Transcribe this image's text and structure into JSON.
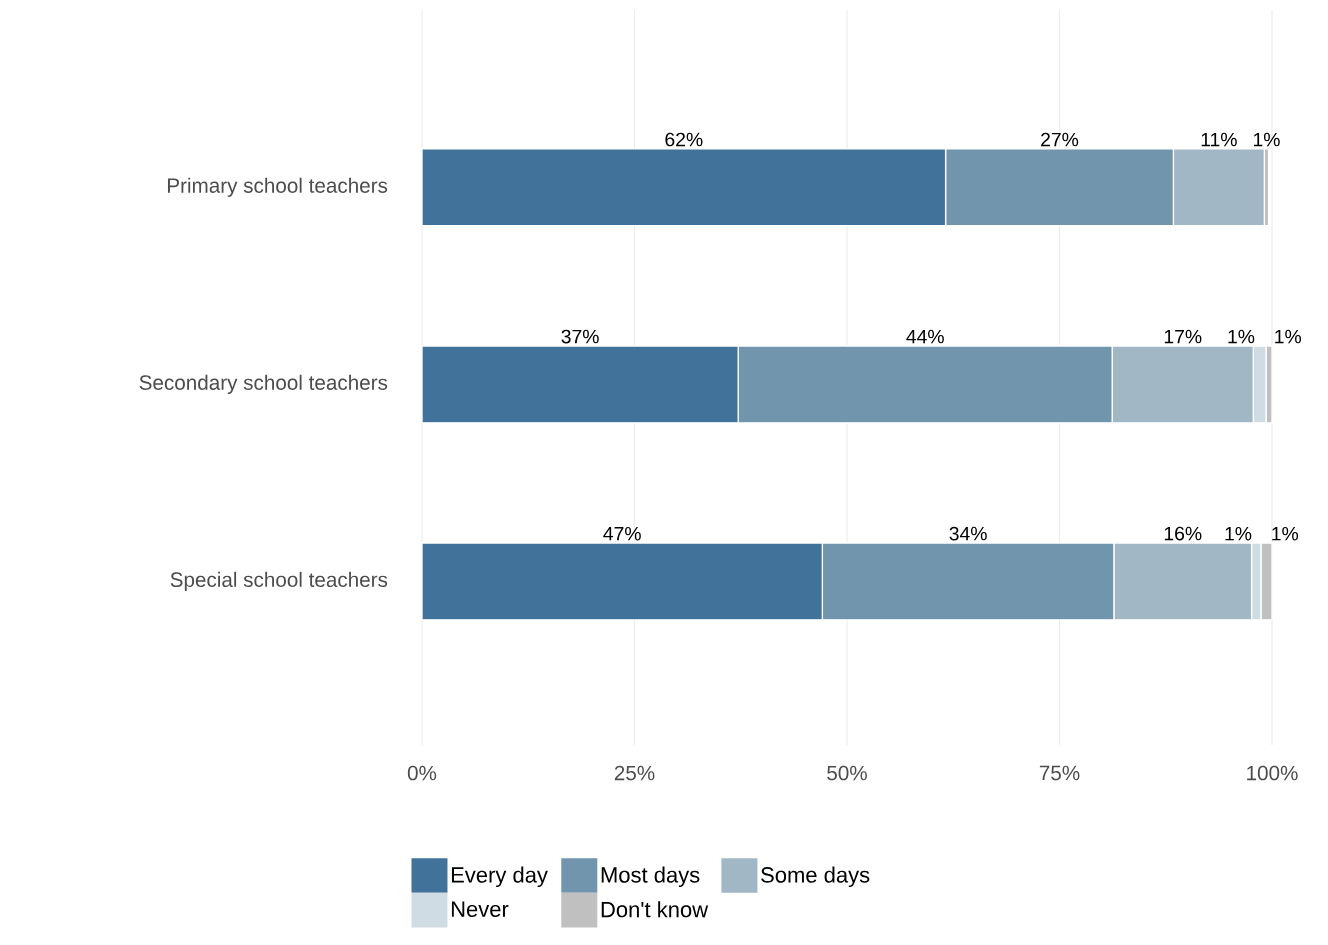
{
  "chart_data": {
    "type": "bar",
    "orientation": "horizontal",
    "stacked": true,
    "categories": [
      "Primary school teachers",
      "Secondary school teachers",
      "Special school teachers"
    ],
    "series": [
      {
        "name": "Every day",
        "color": "#41739a",
        "values": [
          61.6,
          37.2,
          47.1
        ],
        "value_labels": [
          "62%",
          "37%",
          "47%"
        ]
      },
      {
        "name": "Most days",
        "color": "#7295ae",
        "values": [
          26.8,
          44.0,
          34.3
        ],
        "value_labels": [
          "27%",
          "44%",
          "34%"
        ]
      },
      {
        "name": "Some days",
        "color": "#a1b7c6",
        "values": [
          10.7,
          16.6,
          16.2
        ],
        "value_labels": [
          "11%",
          "17%",
          "16%"
        ]
      },
      {
        "name": "Never",
        "color": "#d0dce4",
        "values": [
          0,
          1.5,
          1.1
        ],
        "value_labels": [
          null,
          "1%",
          "1%"
        ]
      },
      {
        "name": "Don't know",
        "color": "#c0c0c0",
        "values": [
          0.5,
          0.7,
          1.3
        ],
        "value_labels": [
          "1%",
          "1%",
          "1%"
        ]
      }
    ],
    "xlim": [
      0,
      100
    ],
    "xticks": [
      {
        "value": 0,
        "label": "0%"
      },
      {
        "value": 25,
        "label": "25%"
      },
      {
        "value": 50,
        "label": "50%"
      },
      {
        "value": 75,
        "label": "75%"
      },
      {
        "value": 100,
        "label": "100%"
      }
    ],
    "grid": "x",
    "legend": "bottom"
  }
}
